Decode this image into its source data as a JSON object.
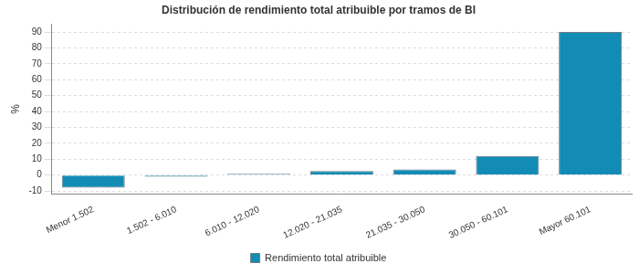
{
  "chart_data": {
    "type": "bar",
    "title": "Distribución de rendimiento total atribuible por tramos de BI",
    "ylabel": "%",
    "categories": [
      "Menor 1.502",
      "1.502 - 6.010",
      "6.010 - 12.020",
      "12.020 - 21.035",
      "21.035 - 30.050",
      "30.050 - 60.101",
      "Mayor 60.101"
    ],
    "series": [
      {
        "name": "Rendimiento total atribuible",
        "color": "#138cb5",
        "values": [
          -8,
          -1,
          0.8,
          2.5,
          3.5,
          12,
          90
        ]
      }
    ],
    "ylim": [
      -12,
      95
    ],
    "yticks": [
      -10,
      0,
      10,
      20,
      30,
      40,
      50,
      60,
      70,
      80,
      90
    ],
    "grid": true,
    "legend": "bottom"
  }
}
